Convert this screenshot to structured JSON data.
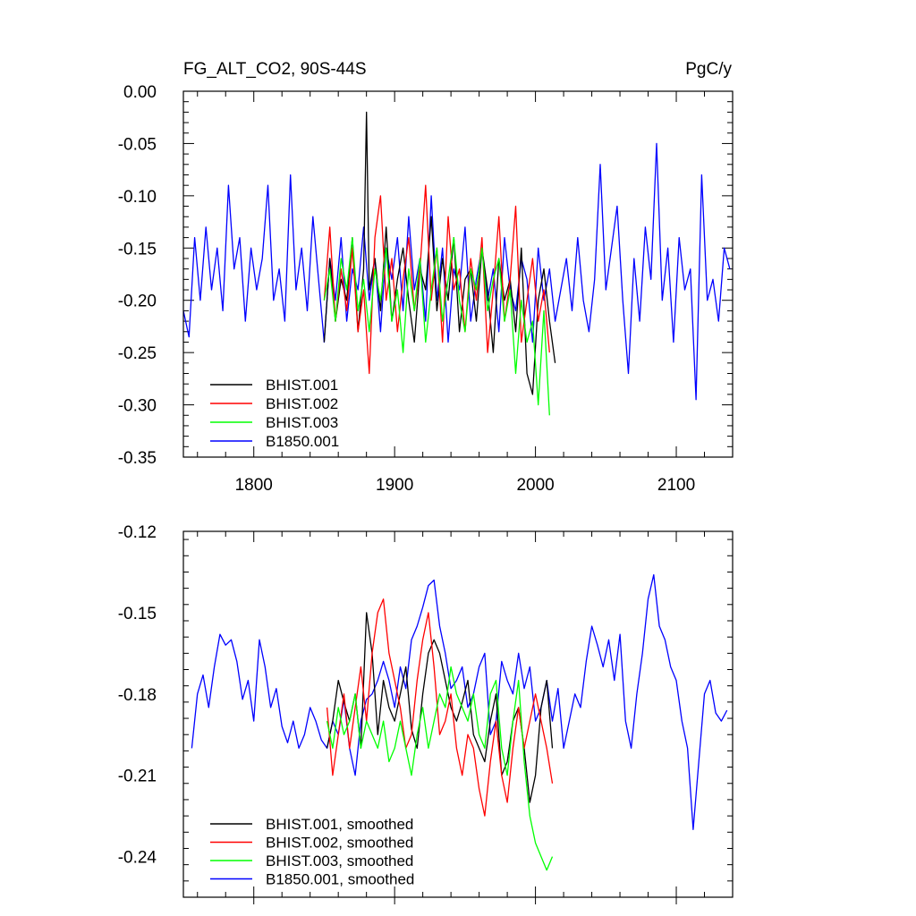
{
  "chart_data": [
    {
      "type": "line",
      "title": "FG_ALT_CO2, 90S-44S",
      "units_label": "PgC/y",
      "xlim": [
        1750,
        2140
      ],
      "ylim": [
        -0.35,
        0.0
      ],
      "xticks": [
        1800,
        1900,
        2000,
        2100
      ],
      "xtick_labels": [
        "1800",
        "1900",
        "2000",
        "2100"
      ],
      "yticks": [
        0.0,
        -0.05,
        -0.1,
        -0.15,
        -0.2,
        -0.25,
        -0.3,
        -0.35
      ],
      "ytick_labels": [
        "0.00",
        "-0.05",
        "-0.10",
        "-0.15",
        "-0.20",
        "-0.25",
        "-0.30",
        "-0.35"
      ],
      "legend_position": "bottom-left",
      "series": [
        {
          "name": "B1850.001",
          "color": "#0000ff",
          "x": [
            1750,
            1754,
            1758,
            1762,
            1766,
            1770,
            1774,
            1778,
            1782,
            1786,
            1790,
            1794,
            1798,
            1802,
            1806,
            1810,
            1814,
            1818,
            1822,
            1826,
            1830,
            1834,
            1838,
            1842,
            1846,
            1850,
            1854,
            1858,
            1862,
            1866,
            1870,
            1874,
            1878,
            1882,
            1886,
            1890,
            1894,
            1898,
            1902,
            1906,
            1910,
            1914,
            1918,
            1922,
            1926,
            1930,
            1934,
            1938,
            1942,
            1946,
            1950,
            1954,
            1958,
            1962,
            1966,
            1970,
            1974,
            1978,
            1982,
            1986,
            1990,
            1994,
            1998,
            2002,
            2006,
            2010,
            2014,
            2018,
            2022,
            2026,
            2030,
            2034,
            2038,
            2042,
            2046,
            2050,
            2054,
            2058,
            2062,
            2066,
            2070,
            2074,
            2078,
            2082,
            2086,
            2090,
            2094,
            2098,
            2102,
            2106,
            2110,
            2114,
            2118,
            2122,
            2126,
            2130,
            2134,
            2138
          ],
          "y": [
            -0.21,
            -0.235,
            -0.14,
            -0.2,
            -0.13,
            -0.19,
            -0.15,
            -0.21,
            -0.09,
            -0.17,
            -0.14,
            -0.22,
            -0.15,
            -0.19,
            -0.16,
            -0.09,
            -0.2,
            -0.17,
            -0.22,
            -0.08,
            -0.19,
            -0.15,
            -0.21,
            -0.12,
            -0.18,
            -0.24,
            -0.16,
            -0.2,
            -0.14,
            -0.22,
            -0.17,
            -0.19,
            -0.13,
            -0.2,
            -0.16,
            -0.23,
            -0.15,
            -0.18,
            -0.14,
            -0.21,
            -0.12,
            -0.19,
            -0.16,
            -0.22,
            -0.1,
            -0.2,
            -0.15,
            -0.24,
            -0.17,
            -0.19,
            -0.13,
            -0.22,
            -0.18,
            -0.15,
            -0.2,
            -0.17,
            -0.23,
            -0.14,
            -0.19,
            -0.21,
            -0.16,
            -0.18,
            -0.24,
            -0.15,
            -0.2,
            -0.17,
            -0.22,
            -0.19,
            -0.16,
            -0.21,
            -0.14,
            -0.2,
            -0.23,
            -0.18,
            -0.07,
            -0.19,
            -0.15,
            -0.11,
            -0.2,
            -0.27,
            -0.16,
            -0.22,
            -0.13,
            -0.18,
            -0.05,
            -0.2,
            -0.15,
            -0.24,
            -0.14,
            -0.19,
            -0.17,
            -0.295,
            -0.08,
            -0.2,
            -0.18,
            -0.22,
            -0.15,
            -0.17
          ]
        },
        {
          "name": "BHIST.001",
          "color": "#000000",
          "x": [
            1850,
            1854,
            1858,
            1862,
            1866,
            1870,
            1874,
            1878,
            1880,
            1882,
            1886,
            1890,
            1894,
            1898,
            1902,
            1906,
            1910,
            1914,
            1918,
            1922,
            1926,
            1930,
            1934,
            1938,
            1942,
            1946,
            1950,
            1954,
            1958,
            1962,
            1966,
            1970,
            1974,
            1978,
            1982,
            1986,
            1990,
            1994,
            1998,
            2002,
            2006,
            2010,
            2014
          ],
          "y": [
            -0.24,
            -0.16,
            -0.22,
            -0.18,
            -0.2,
            -0.14,
            -0.23,
            -0.17,
            -0.02,
            -0.19,
            -0.16,
            -0.21,
            -0.13,
            -0.22,
            -0.18,
            -0.15,
            -0.2,
            -0.24,
            -0.17,
            -0.19,
            -0.12,
            -0.21,
            -0.16,
            -0.2,
            -0.14,
            -0.23,
            -0.18,
            -0.17,
            -0.22,
            -0.15,
            -0.19,
            -0.25,
            -0.16,
            -0.2,
            -0.18,
            -0.23,
            -0.15,
            -0.27,
            -0.29,
            -0.2,
            -0.17,
            -0.22,
            -0.26
          ]
        },
        {
          "name": "BHIST.002",
          "color": "#ff0000",
          "x": [
            1850,
            1854,
            1858,
            1862,
            1866,
            1870,
            1874,
            1878,
            1882,
            1886,
            1890,
            1894,
            1898,
            1902,
            1906,
            1910,
            1914,
            1918,
            1922,
            1926,
            1930,
            1934,
            1938,
            1942,
            1946,
            1950,
            1954,
            1958,
            1962,
            1966,
            1970,
            1974,
            1978,
            1982,
            1986,
            1990,
            1994,
            1998,
            2002,
            2006,
            2010
          ],
          "y": [
            -0.2,
            -0.13,
            -0.22,
            -0.17,
            -0.21,
            -0.15,
            -0.23,
            -0.19,
            -0.27,
            -0.14,
            -0.1,
            -0.2,
            -0.16,
            -0.23,
            -0.18,
            -0.14,
            -0.21,
            -0.17,
            -0.09,
            -0.2,
            -0.15,
            -0.24,
            -0.12,
            -0.19,
            -0.17,
            -0.23,
            -0.16,
            -0.2,
            -0.14,
            -0.25,
            -0.19,
            -0.12,
            -0.22,
            -0.18,
            -0.11,
            -0.24,
            -0.2,
            -0.16,
            -0.22,
            -0.19,
            -0.25
          ]
        },
        {
          "name": "BHIST.003",
          "color": "#00ff00",
          "x": [
            1850,
            1854,
            1858,
            1862,
            1866,
            1870,
            1874,
            1878,
            1882,
            1886,
            1890,
            1894,
            1898,
            1902,
            1906,
            1910,
            1914,
            1918,
            1922,
            1926,
            1930,
            1934,
            1938,
            1942,
            1946,
            1950,
            1954,
            1958,
            1962,
            1966,
            1970,
            1974,
            1978,
            1982,
            1986,
            1990,
            1994,
            1998,
            2002,
            2006,
            2010
          ],
          "y": [
            -0.2,
            -0.17,
            -0.22,
            -0.16,
            -0.19,
            -0.14,
            -0.21,
            -0.18,
            -0.23,
            -0.17,
            -0.2,
            -0.15,
            -0.22,
            -0.19,
            -0.25,
            -0.17,
            -0.21,
            -0.16,
            -0.24,
            -0.19,
            -0.15,
            -0.22,
            -0.18,
            -0.14,
            -0.2,
            -0.23,
            -0.17,
            -0.19,
            -0.15,
            -0.21,
            -0.18,
            -0.16,
            -0.22,
            -0.19,
            -0.27,
            -0.2,
            -0.24,
            -0.22,
            -0.3,
            -0.21,
            -0.31
          ]
        }
      ]
    },
    {
      "type": "line",
      "title": "",
      "xlim": [
        1750,
        2140
      ],
      "ylim": [
        -0.255,
        -0.12
      ],
      "xticks": [
        1800,
        1900,
        2000,
        2100
      ],
      "xtick_labels": [],
      "yticks": [
        -0.12,
        -0.15,
        -0.18,
        -0.21,
        -0.24
      ],
      "ytick_labels": [
        "-0.12",
        "-0.15",
        "-0.18",
        "-0.21",
        "-0.24"
      ],
      "legend_position": "bottom-left",
      "series": [
        {
          "name": "B1850.001, smoothed",
          "color": "#0000ff",
          "x": [
            1756,
            1760,
            1764,
            1768,
            1772,
            1776,
            1780,
            1784,
            1788,
            1792,
            1796,
            1800,
            1804,
            1808,
            1812,
            1816,
            1820,
            1824,
            1828,
            1832,
            1836,
            1840,
            1844,
            1848,
            1852,
            1856,
            1860,
            1864,
            1868,
            1872,
            1876,
            1880,
            1884,
            1888,
            1892,
            1896,
            1900,
            1904,
            1908,
            1912,
            1916,
            1920,
            1924,
            1928,
            1932,
            1936,
            1940,
            1944,
            1948,
            1952,
            1956,
            1960,
            1964,
            1968,
            1972,
            1976,
            1980,
            1984,
            1988,
            1992,
            1996,
            2000,
            2004,
            2008,
            2012,
            2016,
            2020,
            2024,
            2028,
            2032,
            2036,
            2040,
            2044,
            2048,
            2052,
            2056,
            2060,
            2064,
            2068,
            2072,
            2076,
            2080,
            2084,
            2088,
            2092,
            2096,
            2100,
            2104,
            2108,
            2112,
            2116,
            2120,
            2124,
            2128,
            2132,
            2136
          ],
          "y": [
            -0.2,
            -0.18,
            -0.173,
            -0.185,
            -0.17,
            -0.158,
            -0.162,
            -0.16,
            -0.168,
            -0.182,
            -0.175,
            -0.19,
            -0.16,
            -0.17,
            -0.185,
            -0.178,
            -0.192,
            -0.198,
            -0.19,
            -0.2,
            -0.195,
            -0.185,
            -0.19,
            -0.197,
            -0.2,
            -0.19,
            -0.195,
            -0.182,
            -0.2,
            -0.21,
            -0.19,
            -0.182,
            -0.18,
            -0.175,
            -0.168,
            -0.175,
            -0.185,
            -0.17,
            -0.178,
            -0.16,
            -0.155,
            -0.148,
            -0.14,
            -0.138,
            -0.155,
            -0.165,
            -0.178,
            -0.175,
            -0.17,
            -0.185,
            -0.18,
            -0.17,
            -0.165,
            -0.195,
            -0.19,
            -0.168,
            -0.175,
            -0.18,
            -0.165,
            -0.178,
            -0.17,
            -0.19,
            -0.185,
            -0.175,
            -0.19,
            -0.178,
            -0.2,
            -0.19,
            -0.18,
            -0.185,
            -0.168,
            -0.155,
            -0.162,
            -0.17,
            -0.16,
            -0.175,
            -0.158,
            -0.19,
            -0.2,
            -0.18,
            -0.165,
            -0.145,
            -0.136,
            -0.155,
            -0.16,
            -0.17,
            -0.175,
            -0.19,
            -0.2,
            -0.23,
            -0.205,
            -0.18,
            -0.175,
            -0.187,
            -0.19,
            -0.186
          ]
        },
        {
          "name": "BHIST.001, smoothed",
          "color": "#000000",
          "x": [
            1852,
            1856,
            1860,
            1864,
            1868,
            1872,
            1876,
            1880,
            1884,
            1888,
            1892,
            1896,
            1900,
            1904,
            1908,
            1912,
            1916,
            1920,
            1924,
            1928,
            1932,
            1936,
            1940,
            1944,
            1948,
            1952,
            1956,
            1960,
            1964,
            1968,
            1972,
            1976,
            1980,
            1984,
            1988,
            1992,
            1996,
            2000,
            2004,
            2008,
            2012
          ],
          "y": [
            -0.2,
            -0.19,
            -0.175,
            -0.183,
            -0.19,
            -0.18,
            -0.2,
            -0.15,
            -0.165,
            -0.195,
            -0.175,
            -0.185,
            -0.19,
            -0.18,
            -0.17,
            -0.193,
            -0.2,
            -0.18,
            -0.165,
            -0.16,
            -0.165,
            -0.175,
            -0.185,
            -0.19,
            -0.183,
            -0.175,
            -0.195,
            -0.2,
            -0.205,
            -0.19,
            -0.18,
            -0.21,
            -0.205,
            -0.19,
            -0.185,
            -0.2,
            -0.22,
            -0.21,
            -0.185,
            -0.175,
            -0.2
          ]
        },
        {
          "name": "BHIST.002, smoothed",
          "color": "#ff0000",
          "x": [
            1852,
            1856,
            1860,
            1864,
            1868,
            1872,
            1876,
            1880,
            1884,
            1888,
            1892,
            1896,
            1900,
            1904,
            1908,
            1912,
            1916,
            1920,
            1924,
            1928,
            1932,
            1936,
            1940,
            1944,
            1948,
            1952,
            1956,
            1960,
            1964,
            1968,
            1972,
            1976,
            1980,
            1984,
            1988,
            1992,
            1996,
            2000,
            2004,
            2008,
            2012
          ],
          "y": [
            -0.185,
            -0.21,
            -0.195,
            -0.18,
            -0.2,
            -0.185,
            -0.17,
            -0.19,
            -0.165,
            -0.15,
            -0.145,
            -0.165,
            -0.175,
            -0.185,
            -0.2,
            -0.195,
            -0.175,
            -0.16,
            -0.15,
            -0.17,
            -0.195,
            -0.19,
            -0.18,
            -0.2,
            -0.21,
            -0.195,
            -0.2,
            -0.215,
            -0.225,
            -0.205,
            -0.19,
            -0.21,
            -0.22,
            -0.2,
            -0.185,
            -0.2,
            -0.19,
            -0.18,
            -0.19,
            -0.2,
            -0.213
          ]
        },
        {
          "name": "BHIST.003, smoothed",
          "color": "#00ff00",
          "x": [
            1852,
            1856,
            1860,
            1864,
            1868,
            1872,
            1876,
            1880,
            1884,
            1888,
            1892,
            1896,
            1900,
            1904,
            1908,
            1912,
            1916,
            1920,
            1924,
            1928,
            1932,
            1936,
            1940,
            1944,
            1948,
            1952,
            1956,
            1960,
            1964,
            1968,
            1972,
            1976,
            1980,
            1984,
            1988,
            1992,
            1996,
            2000,
            2004,
            2008,
            2012
          ],
          "y": [
            -0.19,
            -0.2,
            -0.185,
            -0.195,
            -0.19,
            -0.18,
            -0.2,
            -0.19,
            -0.195,
            -0.2,
            -0.19,
            -0.205,
            -0.2,
            -0.19,
            -0.2,
            -0.21,
            -0.195,
            -0.185,
            -0.2,
            -0.19,
            -0.18,
            -0.185,
            -0.17,
            -0.18,
            -0.185,
            -0.19,
            -0.18,
            -0.195,
            -0.2,
            -0.18,
            -0.175,
            -0.2,
            -0.21,
            -0.19,
            -0.175,
            -0.205,
            -0.225,
            -0.235,
            -0.24,
            -0.245,
            -0.24
          ]
        }
      ]
    }
  ]
}
